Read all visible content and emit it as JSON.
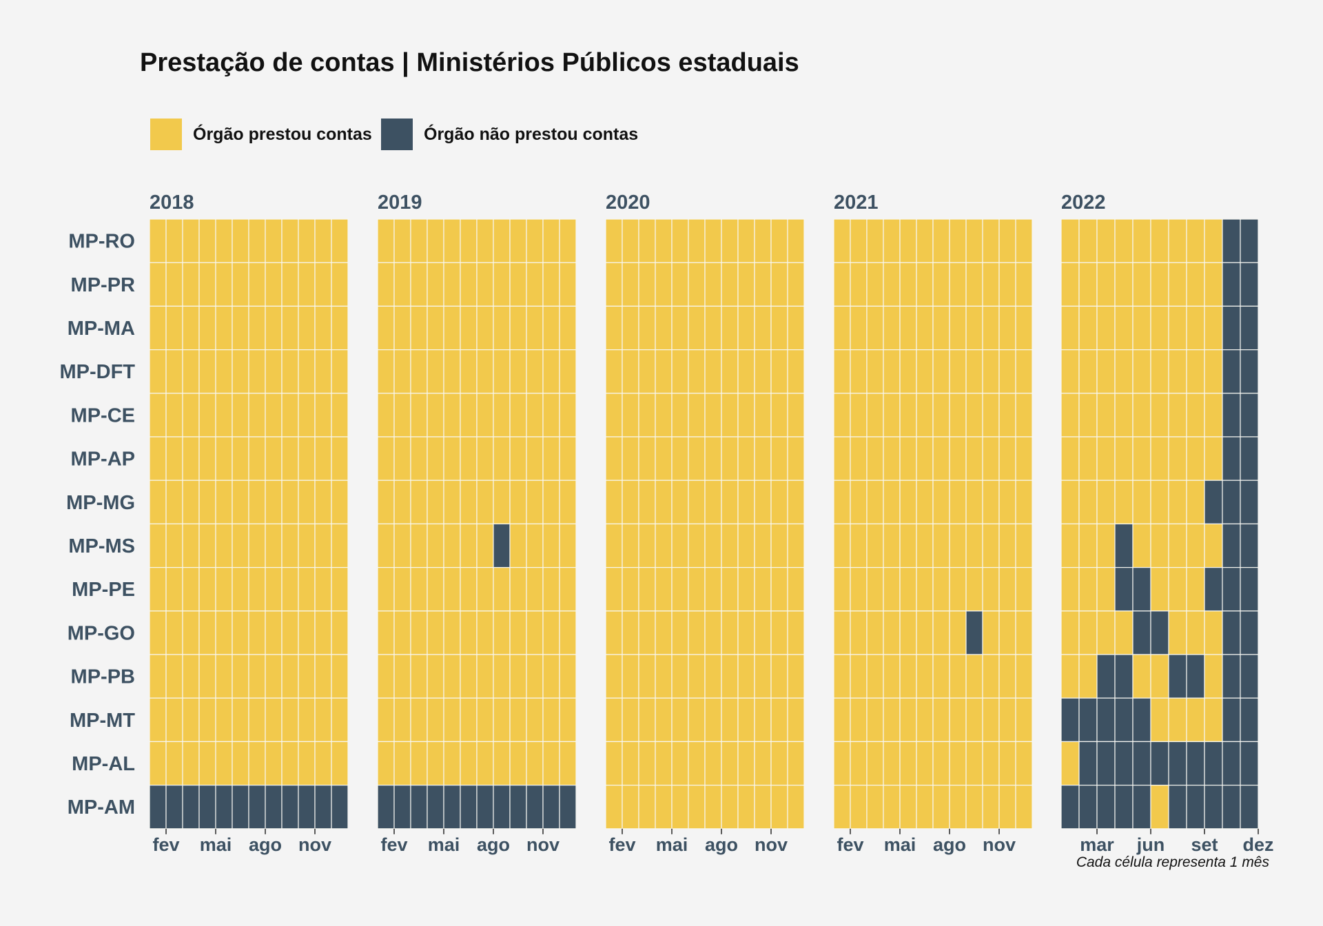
{
  "chart_data": {
    "type": "heatmap",
    "title": "Prestação de contas | Ministérios Públicos estaduais",
    "caption": "Cada célula representa 1 mês",
    "legend": [
      {
        "key": "P",
        "label": "Órgão prestou contas",
        "color": "#f2c94c"
      },
      {
        "key": "N",
        "label": "Órgão não prestou contas",
        "color": "#3d5162"
      }
    ],
    "rows": [
      "MP-RO",
      "MP-PR",
      "MP-MA",
      "MP-DFT",
      "MP-CE",
      "MP-AP",
      "MP-MG",
      "MP-MS",
      "MP-PE",
      "MP-GO",
      "MP-PB",
      "MP-MT",
      "MP-AL",
      "MP-AM"
    ],
    "panels": [
      {
        "year": "2018",
        "xticks": [
          {
            "month": 2,
            "label": "fev"
          },
          {
            "month": 5,
            "label": "mai"
          },
          {
            "month": 8,
            "label": "ago"
          },
          {
            "month": 11,
            "label": "nov"
          }
        ],
        "status": [
          "PPPPPPPPPPPP",
          "PPPPPPPPPPPP",
          "PPPPPPPPPPPP",
          "PPPPPPPPPPPP",
          "PPPPPPPPPPPP",
          "PPPPPPPPPPPP",
          "PPPPPPPPPPPP",
          "PPPPPPPPPPPP",
          "PPPPPPPPPPPP",
          "PPPPPPPPPPPP",
          "PPPPPPPPPPPP",
          "PPPPPPPPPPPP",
          "PPPPPPPPPPPP",
          "NNNNNNNNNNNN"
        ]
      },
      {
        "year": "2019",
        "xticks": [
          {
            "month": 2,
            "label": "fev"
          },
          {
            "month": 5,
            "label": "mai"
          },
          {
            "month": 8,
            "label": "ago"
          },
          {
            "month": 11,
            "label": "nov"
          }
        ],
        "status": [
          "PPPPPPPPPPPP",
          "PPPPPPPPPPPP",
          "PPPPPPPPPPPP",
          "PPPPPPPPPPPP",
          "PPPPPPPPPPPP",
          "PPPPPPPPPPPP",
          "PPPPPPPPPPPP",
          "PPPPPPPNPPPP",
          "PPPPPPPPPPPP",
          "PPPPPPPPPPPP",
          "PPPPPPPPPPPP",
          "PPPPPPPPPPPP",
          "PPPPPPPPPPPP",
          "NNNNNNNNNNNN"
        ]
      },
      {
        "year": "2020",
        "xticks": [
          {
            "month": 2,
            "label": "fev"
          },
          {
            "month": 5,
            "label": "mai"
          },
          {
            "month": 8,
            "label": "ago"
          },
          {
            "month": 11,
            "label": "nov"
          }
        ],
        "status": [
          "PPPPPPPPPPPP",
          "PPPPPPPPPPPP",
          "PPPPPPPPPPPP",
          "PPPPPPPPPPPP",
          "PPPPPPPPPPPP",
          "PPPPPPPPPPPP",
          "PPPPPPPPPPPP",
          "PPPPPPPPPPPP",
          "PPPPPPPPPPPP",
          "PPPPPPPPPPPP",
          "PPPPPPPPPPPP",
          "PPPPPPPPPPPP",
          "PPPPPPPPPPPP",
          "PPPPPPPPPPPP"
        ]
      },
      {
        "year": "2021",
        "xticks": [
          {
            "month": 2,
            "label": "fev"
          },
          {
            "month": 5,
            "label": "mai"
          },
          {
            "month": 8,
            "label": "ago"
          },
          {
            "month": 11,
            "label": "nov"
          }
        ],
        "status": [
          "PPPPPPPPPPPP",
          "PPPPPPPPPPPP",
          "PPPPPPPPPPPP",
          "PPPPPPPPPPPP",
          "PPPPPPPPPPPP",
          "PPPPPPPPPPPP",
          "PPPPPPPPPPPP",
          "PPPPPPPPPPPP",
          "PPPPPPPPPPPP",
          "PPPPPPPPNPPP",
          "PPPPPPPPPPPP",
          "PPPPPPPPPPPP",
          "PPPPPPPPPPPP",
          "PPPPPPPPPPPP"
        ]
      },
      {
        "year": "2022",
        "xticks": [
          {
            "month": 3,
            "label": "mar"
          },
          {
            "month": 6,
            "label": "jun"
          },
          {
            "month": 9,
            "label": "set"
          },
          {
            "month": 12,
            "label": "dez"
          }
        ],
        "status": [
          "PPPPPPPPPNN",
          "PPPPPPPPPNN",
          "PPPPPPPPPNN",
          "PPPPPPPPPNN",
          "PPPPPPPPPNN",
          "PPPPPPPPPNN",
          "PPPPPPPPNNN",
          "PPPNPPPPPNN",
          "PPPNNPPPNNN",
          "PPPPNNPPPNN",
          "PPNNPPNNPNN",
          "NNNNNPPPPNN",
          "PNNNNNNNNNN",
          "NNNNNPNNNNN"
        ]
      }
    ]
  }
}
